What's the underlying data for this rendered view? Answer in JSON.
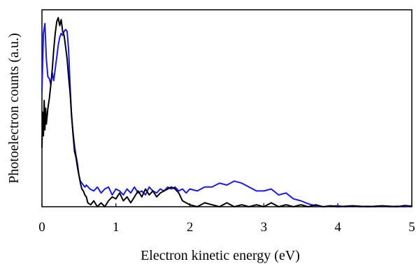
{
  "chart_data": {
    "type": "line",
    "title": "",
    "xlabel": "Electron kinetic energy (eV)",
    "ylabel": "Photoelectron counts (a.u.)",
    "xlim": [
      0,
      5
    ],
    "ylim": [
      0,
      1
    ],
    "xticks": [
      "0",
      "1",
      "2",
      "3",
      "4",
      "5"
    ],
    "yticks": [],
    "grid": false,
    "legend": "none",
    "series": [
      {
        "color": "#1a1ae6",
        "points": [
          [
            0.0,
            0.58
          ],
          [
            0.02,
            0.88
          ],
          [
            0.04,
            0.93
          ],
          [
            0.06,
            0.75
          ],
          [
            0.08,
            0.66
          ],
          [
            0.1,
            0.65
          ],
          [
            0.12,
            0.62
          ],
          [
            0.14,
            0.68
          ],
          [
            0.16,
            0.64
          ],
          [
            0.18,
            0.7
          ],
          [
            0.2,
            0.76
          ],
          [
            0.22,
            0.82
          ],
          [
            0.24,
            0.86
          ],
          [
            0.26,
            0.88
          ],
          [
            0.28,
            0.87
          ],
          [
            0.3,
            0.89
          ],
          [
            0.32,
            0.9
          ],
          [
            0.34,
            0.89
          ],
          [
            0.36,
            0.8
          ],
          [
            0.38,
            0.62
          ],
          [
            0.4,
            0.46
          ],
          [
            0.42,
            0.38
          ],
          [
            0.44,
            0.31
          ],
          [
            0.46,
            0.26
          ],
          [
            0.48,
            0.22
          ],
          [
            0.5,
            0.16
          ],
          [
            0.52,
            0.13
          ],
          [
            0.54,
            0.12
          ],
          [
            0.56,
            0.11
          ],
          [
            0.58,
            0.1
          ],
          [
            0.6,
            0.11
          ],
          [
            0.65,
            0.09
          ],
          [
            0.7,
            0.08
          ],
          [
            0.75,
            0.1
          ],
          [
            0.8,
            0.07
          ],
          [
            0.85,
            0.09
          ],
          [
            0.9,
            0.1
          ],
          [
            0.95,
            0.06
          ],
          [
            1.0,
            0.09
          ],
          [
            1.05,
            0.08
          ],
          [
            1.1,
            0.06
          ],
          [
            1.15,
            0.09
          ],
          [
            1.2,
            0.07
          ],
          [
            1.25,
            0.1
          ],
          [
            1.3,
            0.07
          ],
          [
            1.35,
            0.08
          ],
          [
            1.4,
            0.06
          ],
          [
            1.45,
            0.1
          ],
          [
            1.5,
            0.08
          ],
          [
            1.55,
            0.07
          ],
          [
            1.6,
            0.09
          ],
          [
            1.65,
            0.08
          ],
          [
            1.7,
            0.1
          ],
          [
            1.75,
            0.09
          ],
          [
            1.8,
            0.1
          ],
          [
            1.85,
            0.08
          ],
          [
            1.9,
            0.09
          ],
          [
            1.95,
            0.07
          ],
          [
            2.0,
            0.09
          ],
          [
            2.1,
            0.08
          ],
          [
            2.2,
            0.1
          ],
          [
            2.3,
            0.1
          ],
          [
            2.4,
            0.12
          ],
          [
            2.5,
            0.11
          ],
          [
            2.6,
            0.13
          ],
          [
            2.7,
            0.12
          ],
          [
            2.8,
            0.1
          ],
          [
            2.9,
            0.08
          ],
          [
            3.0,
            0.08
          ],
          [
            3.1,
            0.09
          ],
          [
            3.2,
            0.06
          ],
          [
            3.3,
            0.07
          ],
          [
            3.4,
            0.04
          ],
          [
            3.5,
            0.03
          ],
          [
            3.6,
            0.015
          ],
          [
            3.7,
            0.005
          ],
          [
            3.8,
            0.0
          ],
          [
            3.9,
            0.003
          ],
          [
            4.0,
            0.005
          ],
          [
            4.1,
            0.0
          ],
          [
            4.2,
            0.004
          ],
          [
            4.3,
            0.0
          ],
          [
            4.4,
            0.003
          ],
          [
            4.5,
            0.0
          ],
          [
            4.6,
            0.004
          ],
          [
            4.7,
            0.0
          ],
          [
            4.8,
            0.003
          ],
          [
            4.9,
            0.0
          ],
          [
            5.0,
            0.004
          ]
        ]
      },
      {
        "color": "#000000",
        "points": [
          [
            0.0,
            0.3
          ],
          [
            0.01,
            0.48
          ],
          [
            0.02,
            0.36
          ],
          [
            0.03,
            0.54
          ],
          [
            0.04,
            0.39
          ],
          [
            0.05,
            0.5
          ],
          [
            0.06,
            0.42
          ],
          [
            0.08,
            0.5
          ],
          [
            0.1,
            0.55
          ],
          [
            0.12,
            0.62
          ],
          [
            0.14,
            0.7
          ],
          [
            0.16,
            0.8
          ],
          [
            0.18,
            0.88
          ],
          [
            0.2,
            0.94
          ],
          [
            0.22,
            0.96
          ],
          [
            0.24,
            0.92
          ],
          [
            0.26,
            0.95
          ],
          [
            0.28,
            0.89
          ],
          [
            0.3,
            0.87
          ],
          [
            0.32,
            0.81
          ],
          [
            0.34,
            0.75
          ],
          [
            0.36,
            0.66
          ],
          [
            0.38,
            0.58
          ],
          [
            0.4,
            0.47
          ],
          [
            0.42,
            0.37
          ],
          [
            0.44,
            0.28
          ],
          [
            0.46,
            0.25
          ],
          [
            0.48,
            0.2
          ],
          [
            0.5,
            0.16
          ],
          [
            0.52,
            0.12
          ],
          [
            0.54,
            0.09
          ],
          [
            0.56,
            0.08
          ],
          [
            0.58,
            0.06
          ],
          [
            0.6,
            0.05
          ],
          [
            0.62,
            0.02
          ],
          [
            0.66,
            0.01
          ],
          [
            0.7,
            0.03
          ],
          [
            0.75,
            0.0
          ],
          [
            0.8,
            0.02
          ],
          [
            0.85,
            0.0
          ],
          [
            0.9,
            0.03
          ],
          [
            0.95,
            0.05
          ],
          [
            1.0,
            0.04
          ],
          [
            1.05,
            0.07
          ],
          [
            1.1,
            0.03
          ],
          [
            1.15,
            0.05
          ],
          [
            1.2,
            0.02
          ],
          [
            1.25,
            0.05
          ],
          [
            1.3,
            0.08
          ],
          [
            1.35,
            0.05
          ],
          [
            1.4,
            0.09
          ],
          [
            1.45,
            0.06
          ],
          [
            1.5,
            0.08
          ],
          [
            1.55,
            0.05
          ],
          [
            1.6,
            0.07
          ],
          [
            1.65,
            0.08
          ],
          [
            1.7,
            0.09
          ],
          [
            1.75,
            0.1
          ],
          [
            1.8,
            0.09
          ],
          [
            1.85,
            0.07
          ],
          [
            1.9,
            0.03
          ],
          [
            1.95,
            0.02
          ],
          [
            2.0,
            0.01
          ],
          [
            2.1,
            0.0
          ],
          [
            2.2,
            0.02
          ],
          [
            2.3,
            0.01
          ],
          [
            2.4,
            0.0
          ],
          [
            2.5,
            0.02
          ],
          [
            2.6,
            0.0
          ],
          [
            2.7,
            0.01
          ],
          [
            2.8,
            0.0
          ],
          [
            2.9,
            0.01
          ],
          [
            3.0,
            0.0
          ],
          [
            3.1,
            0.02
          ],
          [
            3.2,
            0.0
          ],
          [
            3.3,
            0.01
          ],
          [
            3.4,
            0.0
          ],
          [
            3.5,
            0.01
          ],
          [
            3.6,
            0.0
          ],
          [
            3.7,
            0.01
          ],
          [
            3.8,
            0.0
          ],
          [
            3.9,
            0.005
          ],
          [
            4.0,
            0.0
          ],
          [
            4.2,
            0.005
          ],
          [
            4.4,
            0.0
          ],
          [
            4.6,
            0.005
          ],
          [
            4.8,
            0.0
          ],
          [
            4.9,
            0.006
          ],
          [
            5.0,
            0.003
          ]
        ]
      }
    ]
  }
}
